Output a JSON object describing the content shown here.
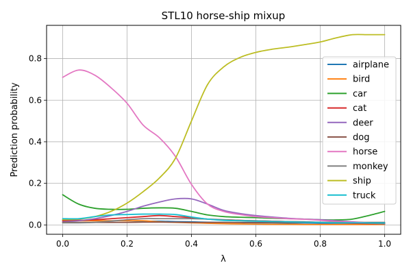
{
  "chart_data": {
    "type": "line",
    "title": "STL10 horse-ship mixup",
    "xlabel": "λ",
    "ylabel": "Prediction probability",
    "xlim": [
      -0.05,
      1.05
    ],
    "ylim": [
      -0.045,
      0.96
    ],
    "xticks": [
      0.0,
      0.2,
      0.4,
      0.6,
      0.8,
      1.0
    ],
    "xtick_labels": [
      "0.0",
      "0.2",
      "0.4",
      "0.6",
      "0.8",
      "1.0"
    ],
    "yticks": [
      0.0,
      0.2,
      0.4,
      0.6,
      0.8
    ],
    "ytick_labels": [
      "0.0",
      "0.2",
      "0.4",
      "0.6",
      "0.8"
    ],
    "grid": true,
    "legend_position": "right",
    "x": [
      0.0,
      0.05,
      0.1,
      0.15,
      0.2,
      0.25,
      0.3,
      0.35,
      0.4,
      0.45,
      0.5,
      0.55,
      0.6,
      0.65,
      0.7,
      0.75,
      0.8,
      0.85,
      0.9,
      0.95,
      1.0
    ],
    "series": [
      {
        "name": "airplane",
        "color": "#1f77b4",
        "values": [
          0.025,
          0.022,
          0.02,
          0.02,
          0.02,
          0.018,
          0.018,
          0.016,
          0.015,
          0.013,
          0.012,
          0.011,
          0.01,
          0.01,
          0.009,
          0.009,
          0.008,
          0.008,
          0.008,
          0.008,
          0.008
        ]
      },
      {
        "name": "bird",
        "color": "#ff7f0e",
        "values": [
          0.02,
          0.02,
          0.02,
          0.02,
          0.02,
          0.02,
          0.015,
          0.012,
          0.01,
          0.008,
          0.006,
          0.005,
          0.004,
          0.003,
          0.003,
          0.002,
          0.002,
          0.002,
          0.002,
          0.002,
          0.002
        ]
      },
      {
        "name": "car",
        "color": "#2ca02c",
        "values": [
          0.145,
          0.1,
          0.08,
          0.075,
          0.075,
          0.08,
          0.082,
          0.08,
          0.065,
          0.048,
          0.04,
          0.037,
          0.035,
          0.032,
          0.03,
          0.028,
          0.025,
          0.024,
          0.028,
          0.045,
          0.065
        ]
      },
      {
        "name": "cat",
        "color": "#d62728",
        "values": [
          0.02,
          0.022,
          0.025,
          0.03,
          0.035,
          0.04,
          0.045,
          0.04,
          0.035,
          0.028,
          0.025,
          0.022,
          0.02,
          0.018,
          0.016,
          0.015,
          0.012,
          0.01,
          0.008,
          0.006,
          0.005
        ]
      },
      {
        "name": "deer",
        "color": "#9467bd",
        "values": [
          0.015,
          0.02,
          0.03,
          0.045,
          0.065,
          0.09,
          0.11,
          0.125,
          0.125,
          0.1,
          0.07,
          0.055,
          0.045,
          0.038,
          0.032,
          0.028,
          0.025,
          0.02,
          0.015,
          0.01,
          0.005
        ]
      },
      {
        "name": "dog",
        "color": "#8c564b",
        "values": [
          0.012,
          0.012,
          0.012,
          0.012,
          0.012,
          0.013,
          0.013,
          0.013,
          0.012,
          0.012,
          0.012,
          0.012,
          0.012,
          0.012,
          0.012,
          0.012,
          0.012,
          0.012,
          0.012,
          0.012,
          0.012
        ]
      },
      {
        "name": "horse",
        "color": "#e377c2",
        "values": [
          0.71,
          0.745,
          0.72,
          0.66,
          0.585,
          0.48,
          0.42,
          0.33,
          0.195,
          0.1,
          0.065,
          0.05,
          0.04,
          0.035,
          0.03,
          0.027,
          0.022,
          0.017,
          0.013,
          0.01,
          0.008
        ]
      },
      {
        "name": "monkey",
        "color": "#7f7f7f",
        "values": [
          0.01,
          0.01,
          0.012,
          0.018,
          0.025,
          0.03,
          0.03,
          0.03,
          0.03,
          0.028,
          0.025,
          0.022,
          0.02,
          0.018,
          0.016,
          0.015,
          0.013,
          0.012,
          0.01,
          0.008,
          0.005
        ]
      },
      {
        "name": "ship",
        "color": "#bcbd22",
        "values": [
          0.025,
          0.028,
          0.04,
          0.065,
          0.105,
          0.16,
          0.225,
          0.32,
          0.5,
          0.675,
          0.76,
          0.805,
          0.83,
          0.845,
          0.855,
          0.867,
          0.88,
          0.9,
          0.915,
          0.915,
          0.915
        ]
      },
      {
        "name": "truck",
        "color": "#17becf",
        "values": [
          0.03,
          0.03,
          0.04,
          0.048,
          0.05,
          0.052,
          0.052,
          0.05,
          0.038,
          0.028,
          0.022,
          0.02,
          0.018,
          0.016,
          0.015,
          0.013,
          0.012,
          0.01,
          0.01,
          0.01,
          0.01
        ]
      }
    ]
  }
}
